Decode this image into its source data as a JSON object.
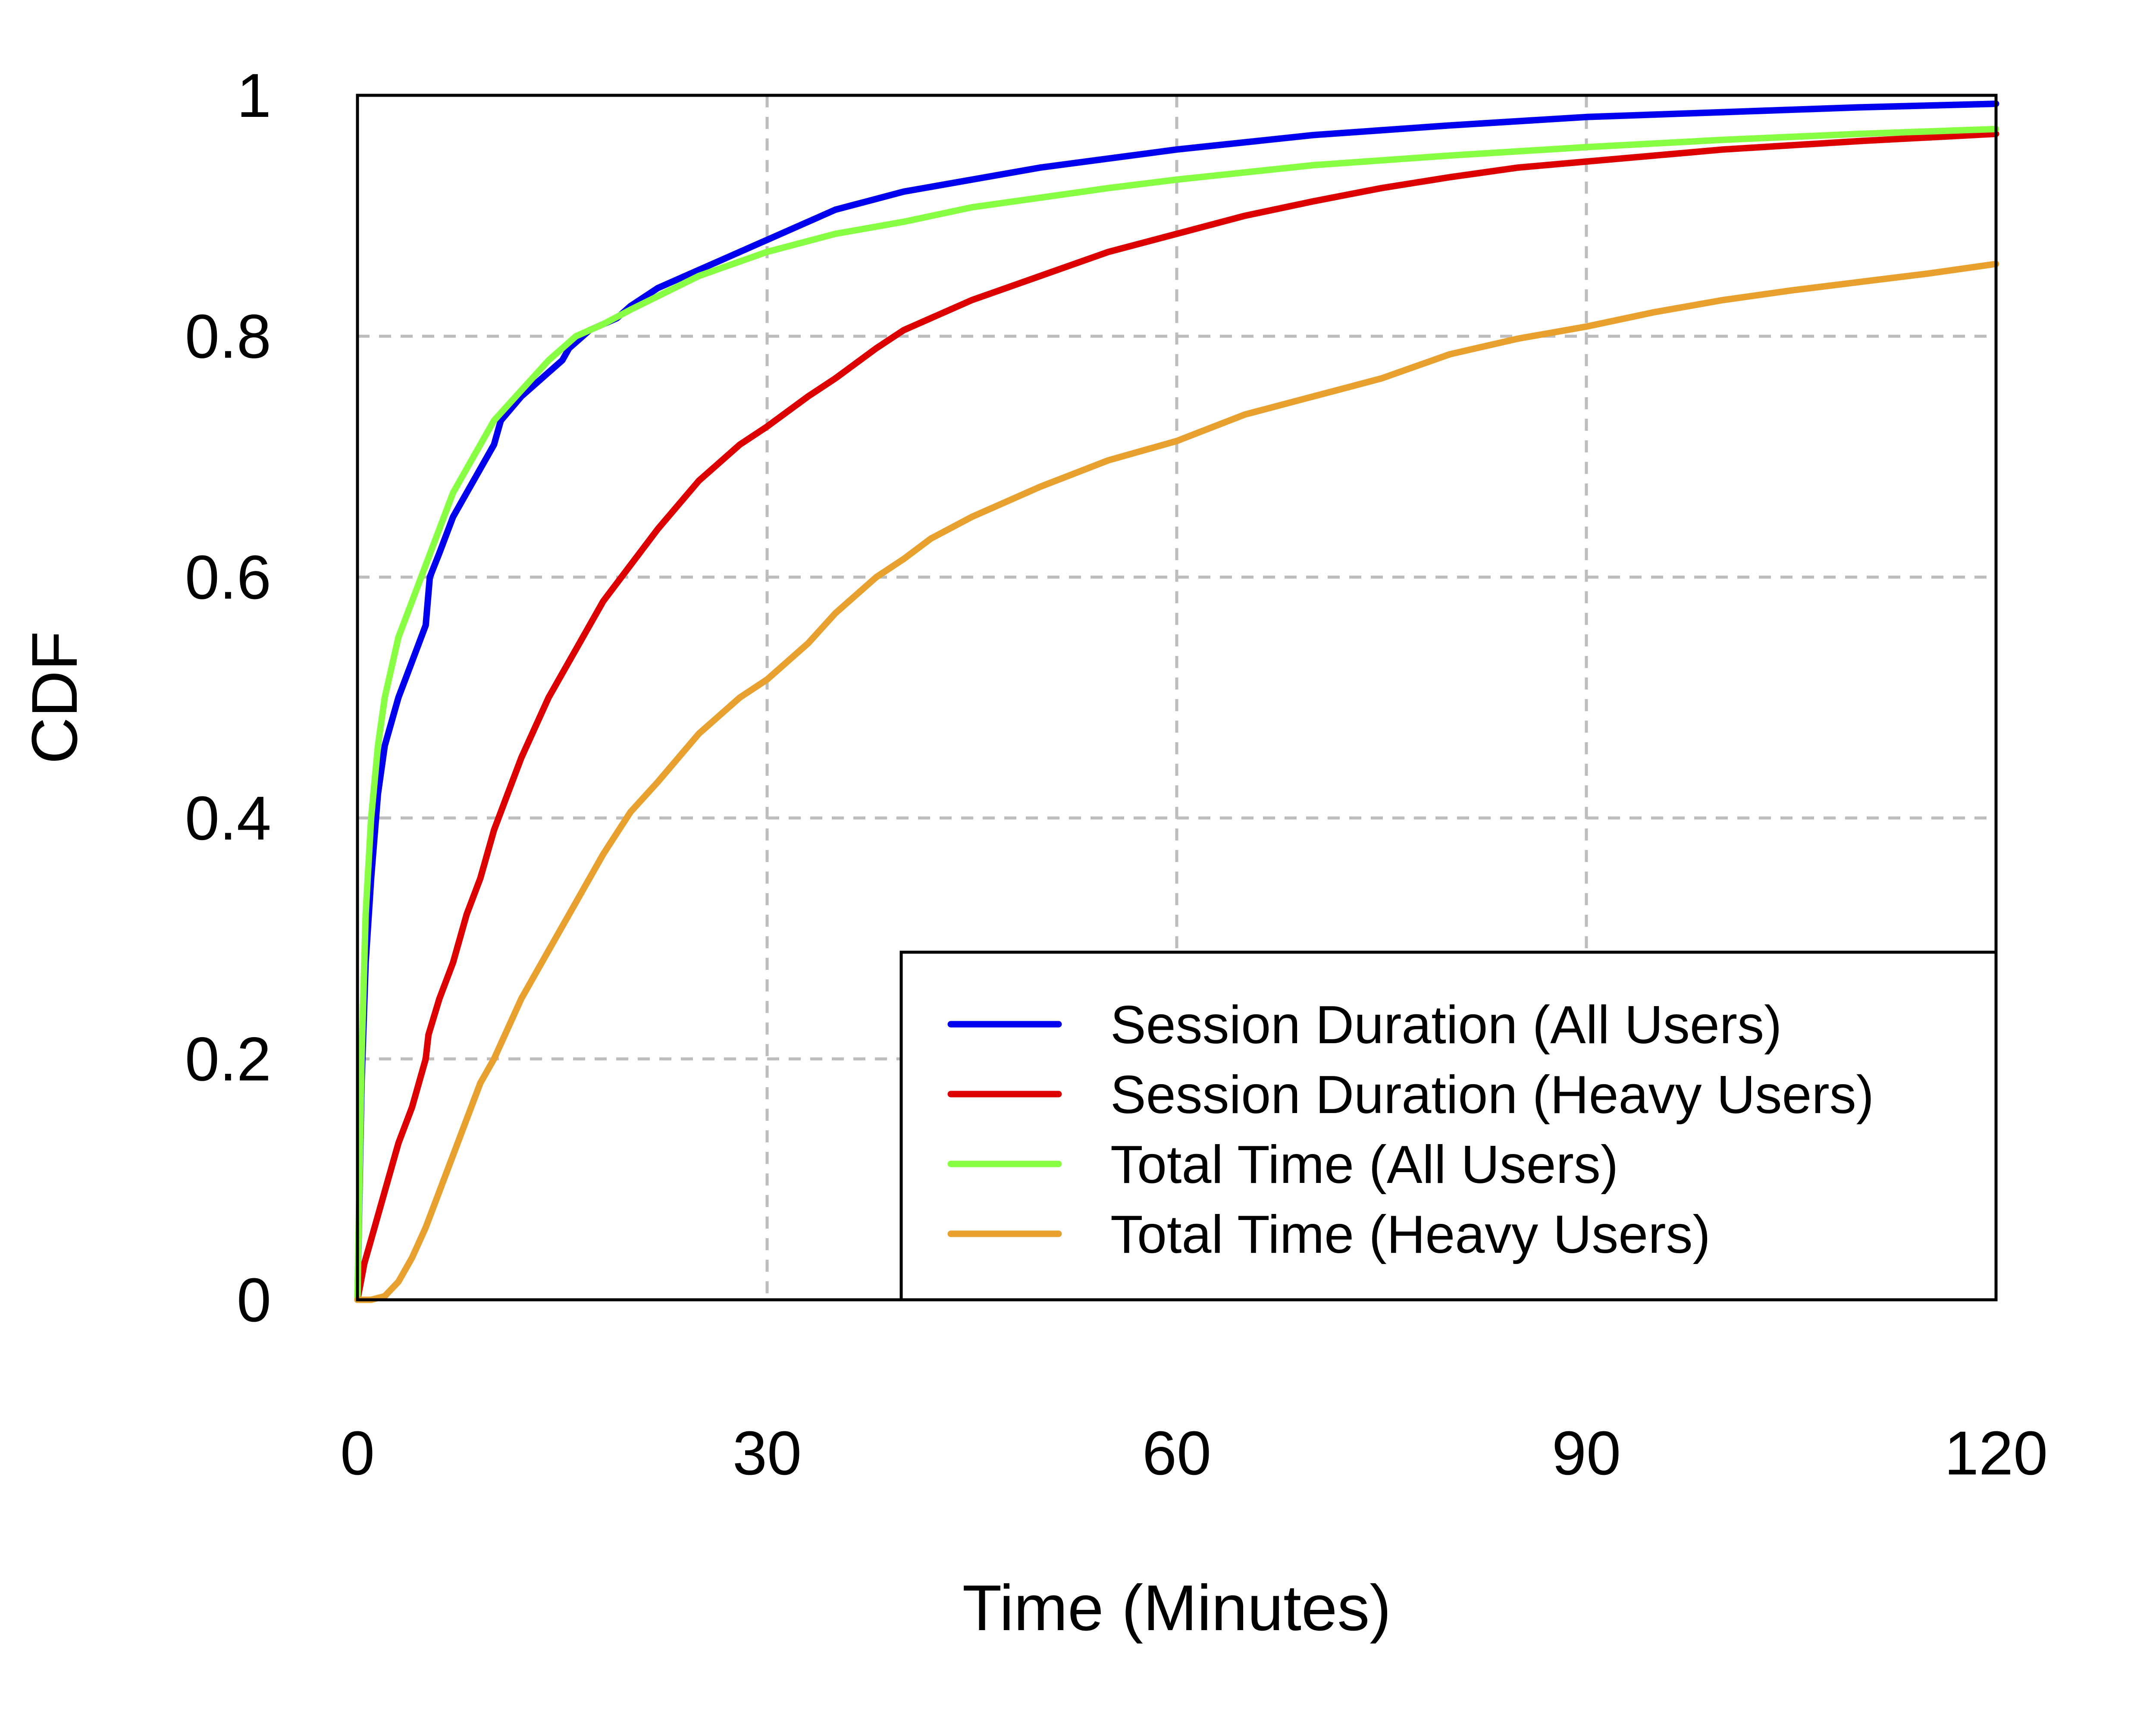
{
  "chart_data": {
    "type": "line",
    "title": "",
    "xlabel": "Time (Minutes)",
    "ylabel": "CDF",
    "xlim": [
      0,
      120
    ],
    "ylim": [
      0,
      1
    ],
    "x_ticks": [
      "0",
      "30",
      "60",
      "90",
      "120"
    ],
    "y_ticks": [
      "0",
      "0.2",
      "0.4",
      "0.6",
      "0.8",
      "1"
    ],
    "grid": true,
    "legend_position": "bottom-right",
    "series": [
      {
        "name": "Session Duration (All Users)",
        "color": "#0000ee",
        "points": [
          [
            0,
            0
          ],
          [
            0.3,
            0.18
          ],
          [
            0.6,
            0.28
          ],
          [
            1,
            0.35
          ],
          [
            1.5,
            0.42
          ],
          [
            2,
            0.46
          ],
          [
            3,
            0.5
          ],
          [
            4,
            0.53
          ],
          [
            5,
            0.56
          ],
          [
            5.3,
            0.6
          ],
          [
            6,
            0.62
          ],
          [
            7,
            0.65
          ],
          [
            8,
            0.67
          ],
          [
            9,
            0.69
          ],
          [
            10,
            0.71
          ],
          [
            10.5,
            0.73
          ],
          [
            12,
            0.75
          ],
          [
            14,
            0.77
          ],
          [
            15,
            0.78
          ],
          [
            15.5,
            0.79
          ],
          [
            17,
            0.805
          ],
          [
            19,
            0.815
          ],
          [
            20,
            0.825
          ],
          [
            22,
            0.84
          ],
          [
            25,
            0.855
          ],
          [
            28,
            0.87
          ],
          [
            30,
            0.88
          ],
          [
            33,
            0.895
          ],
          [
            35,
            0.905
          ],
          [
            40,
            0.92
          ],
          [
            45,
            0.93
          ],
          [
            50,
            0.94
          ],
          [
            60,
            0.955
          ],
          [
            70,
            0.967
          ],
          [
            80,
            0.975
          ],
          [
            90,
            0.982
          ],
          [
            100,
            0.986
          ],
          [
            110,
            0.99
          ],
          [
            120,
            0.993
          ]
        ]
      },
      {
        "name": "Session Duration (Heavy Users)",
        "color": "#dd0000",
        "points": [
          [
            0,
            0
          ],
          [
            0.5,
            0.03
          ],
          [
            1,
            0.05
          ],
          [
            2,
            0.09
          ],
          [
            3,
            0.13
          ],
          [
            4,
            0.16
          ],
          [
            5,
            0.2
          ],
          [
            5.2,
            0.22
          ],
          [
            6,
            0.25
          ],
          [
            7,
            0.28
          ],
          [
            8,
            0.32
          ],
          [
            9,
            0.35
          ],
          [
            10,
            0.39
          ],
          [
            11,
            0.42
          ],
          [
            12,
            0.45
          ],
          [
            14,
            0.5
          ],
          [
            15,
            0.52
          ],
          [
            16,
            0.54
          ],
          [
            18,
            0.58
          ],
          [
            20,
            0.61
          ],
          [
            22,
            0.64
          ],
          [
            25,
            0.68
          ],
          [
            28,
            0.71
          ],
          [
            30,
            0.725
          ],
          [
            33,
            0.75
          ],
          [
            35,
            0.765
          ],
          [
            38,
            0.79
          ],
          [
            40,
            0.805
          ],
          [
            45,
            0.83
          ],
          [
            50,
            0.85
          ],
          [
            55,
            0.87
          ],
          [
            60,
            0.885
          ],
          [
            65,
            0.9
          ],
          [
            70,
            0.912
          ],
          [
            75,
            0.923
          ],
          [
            80,
            0.932
          ],
          [
            85,
            0.94
          ],
          [
            90,
            0.945
          ],
          [
            95,
            0.95
          ],
          [
            100,
            0.955
          ],
          [
            110,
            0.962
          ],
          [
            120,
            0.968
          ]
        ]
      },
      {
        "name": "Total Time (All Users)",
        "color": "#88ff44",
        "points": [
          [
            0,
            0
          ],
          [
            0.3,
            0.2
          ],
          [
            0.6,
            0.32
          ],
          [
            1,
            0.4
          ],
          [
            1.5,
            0.46
          ],
          [
            2,
            0.5
          ],
          [
            3,
            0.55
          ],
          [
            4,
            0.58
          ],
          [
            5,
            0.61
          ],
          [
            6,
            0.64
          ],
          [
            7,
            0.67
          ],
          [
            8,
            0.69
          ],
          [
            9,
            0.71
          ],
          [
            10,
            0.73
          ],
          [
            12,
            0.755
          ],
          [
            14,
            0.78
          ],
          [
            16,
            0.8
          ],
          [
            18,
            0.81
          ],
          [
            20,
            0.822
          ],
          [
            25,
            0.85
          ],
          [
            30,
            0.87
          ],
          [
            35,
            0.885
          ],
          [
            40,
            0.895
          ],
          [
            45,
            0.907
          ],
          [
            50,
            0.915
          ],
          [
            55,
            0.923
          ],
          [
            60,
            0.93
          ],
          [
            70,
            0.942
          ],
          [
            80,
            0.95
          ],
          [
            90,
            0.957
          ],
          [
            100,
            0.963
          ],
          [
            110,
            0.968
          ],
          [
            120,
            0.972
          ]
        ]
      },
      {
        "name": "Total Time (Heavy Users)",
        "color": "#e8a02e",
        "points": [
          [
            0,
            0
          ],
          [
            1,
            0
          ],
          [
            2,
            0.003
          ],
          [
            3,
            0.015
          ],
          [
            4,
            0.035
          ],
          [
            5,
            0.06
          ],
          [
            6,
            0.09
          ],
          [
            7,
            0.12
          ],
          [
            8,
            0.15
          ],
          [
            9,
            0.18
          ],
          [
            10,
            0.2
          ],
          [
            12,
            0.25
          ],
          [
            14,
            0.29
          ],
          [
            16,
            0.33
          ],
          [
            18,
            0.37
          ],
          [
            20,
            0.405
          ],
          [
            22,
            0.43
          ],
          [
            25,
            0.47
          ],
          [
            28,
            0.5
          ],
          [
            30,
            0.515
          ],
          [
            33,
            0.545
          ],
          [
            35,
            0.57
          ],
          [
            38,
            0.6
          ],
          [
            40,
            0.615
          ],
          [
            42,
            0.632
          ],
          [
            45,
            0.65
          ],
          [
            50,
            0.675
          ],
          [
            55,
            0.697
          ],
          [
            60,
            0.713
          ],
          [
            65,
            0.735
          ],
          [
            70,
            0.75
          ],
          [
            75,
            0.765
          ],
          [
            80,
            0.785
          ],
          [
            85,
            0.798
          ],
          [
            90,
            0.808
          ],
          [
            95,
            0.82
          ],
          [
            100,
            0.83
          ],
          [
            105,
            0.838
          ],
          [
            110,
            0.845
          ],
          [
            115,
            0.852
          ],
          [
            120,
            0.86
          ]
        ]
      }
    ]
  }
}
